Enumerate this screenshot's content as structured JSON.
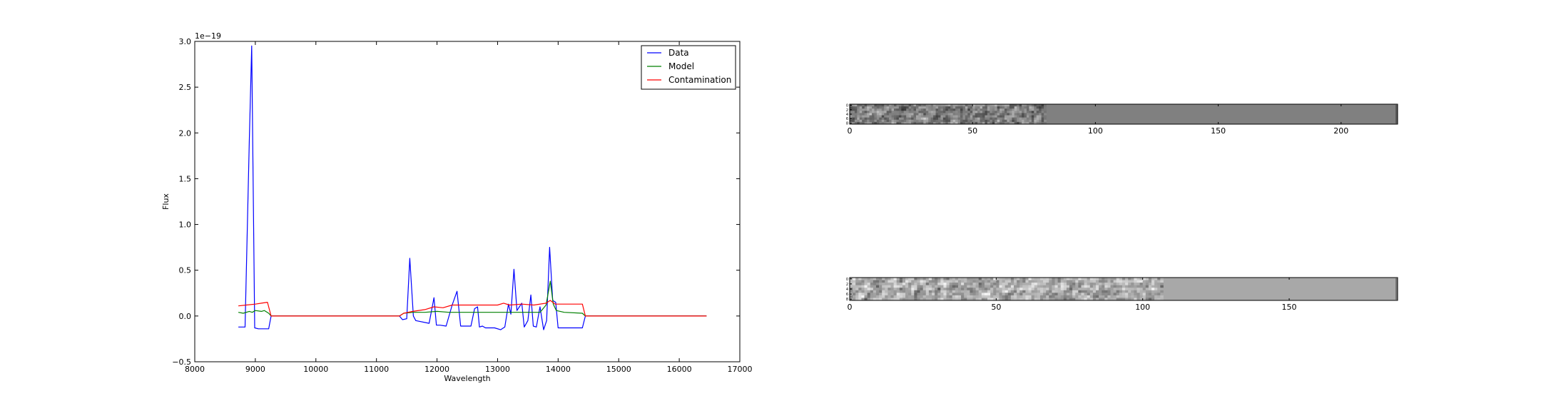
{
  "chart_data": [
    {
      "type": "line",
      "title": "",
      "xlabel": "Wavelength",
      "ylabel": "Flux",
      "offset_label": "1e−19",
      "xlim": [
        8000,
        17000
      ],
      "ylim": [
        -0.5,
        3.0
      ],
      "xticks": [
        8000,
        9000,
        10000,
        11000,
        12000,
        13000,
        14000,
        15000,
        16000,
        17000
      ],
      "yticks": [
        -0.5,
        0.0,
        0.5,
        1.0,
        1.5,
        2.0,
        2.5,
        3.0
      ],
      "legend_position": "top-right",
      "grid": false,
      "series": [
        {
          "name": "Data",
          "color": "#0000ff",
          "points": [
            [
              8720,
              -0.12
            ],
            [
              8830,
              -0.12
            ],
            [
              8900,
              1.9
            ],
            [
              8940,
              2.95
            ],
            [
              8990,
              -0.13
            ],
            [
              9050,
              -0.14
            ],
            [
              9220,
              -0.14
            ],
            [
              9260,
              0.0
            ],
            [
              11380,
              0.0
            ],
            [
              11430,
              -0.04
            ],
            [
              11500,
              -0.03
            ],
            [
              11550,
              0.63
            ],
            [
              11610,
              0.0
            ],
            [
              11650,
              -0.05
            ],
            [
              11870,
              -0.08
            ],
            [
              11950,
              0.2
            ],
            [
              11990,
              -0.1
            ],
            [
              12050,
              -0.1
            ],
            [
              12150,
              -0.11
            ],
            [
              12250,
              0.12
            ],
            [
              12330,
              0.27
            ],
            [
              12390,
              -0.11
            ],
            [
              12560,
              -0.11
            ],
            [
              12620,
              0.08
            ],
            [
              12670,
              0.1
            ],
            [
              12700,
              -0.12
            ],
            [
              12750,
              -0.11
            ],
            [
              12800,
              -0.13
            ],
            [
              12950,
              -0.13
            ],
            [
              13050,
              -0.15
            ],
            [
              13120,
              -0.12
            ],
            [
              13180,
              0.13
            ],
            [
              13220,
              0.02
            ],
            [
              13270,
              0.51
            ],
            [
              13320,
              0.06
            ],
            [
              13360,
              0.1
            ],
            [
              13400,
              0.14
            ],
            [
              13440,
              -0.12
            ],
            [
              13500,
              -0.05
            ],
            [
              13550,
              0.23
            ],
            [
              13590,
              -0.11
            ],
            [
              13640,
              -0.12
            ],
            [
              13700,
              0.1
            ],
            [
              13760,
              -0.15
            ],
            [
              13810,
              -0.05
            ],
            [
              13860,
              0.75
            ],
            [
              13910,
              0.17
            ],
            [
              13960,
              0.15
            ],
            [
              14000,
              -0.13
            ],
            [
              14400,
              -0.13
            ],
            [
              14450,
              0.0
            ],
            [
              16450,
              0.0
            ]
          ]
        },
        {
          "name": "Model",
          "color": "#008000",
          "points": [
            [
              8720,
              0.04
            ],
            [
              8800,
              0.03
            ],
            [
              8900,
              0.05
            ],
            [
              8950,
              0.04
            ],
            [
              9000,
              0.06
            ],
            [
              9100,
              0.05
            ],
            [
              9150,
              0.06
            ],
            [
              9220,
              0.03
            ],
            [
              9260,
              0.0
            ],
            [
              11380,
              0.0
            ],
            [
              11450,
              0.03
            ],
            [
              11600,
              0.04
            ],
            [
              11800,
              0.04
            ],
            [
              12000,
              0.05
            ],
            [
              12200,
              0.04
            ],
            [
              12500,
              0.04
            ],
            [
              12800,
              0.04
            ],
            [
              13100,
              0.04
            ],
            [
              13400,
              0.04
            ],
            [
              13700,
              0.04
            ],
            [
              13800,
              0.12
            ],
            [
              13870,
              0.38
            ],
            [
              13920,
              0.13
            ],
            [
              13970,
              0.06
            ],
            [
              14100,
              0.04
            ],
            [
              14400,
              0.03
            ],
            [
              14450,
              0.0
            ],
            [
              16450,
              0.0
            ]
          ]
        },
        {
          "name": "Contamination",
          "color": "#ff0000",
          "points": [
            [
              8720,
              0.11
            ],
            [
              8850,
              0.12
            ],
            [
              9000,
              0.13
            ],
            [
              9100,
              0.14
            ],
            [
              9200,
              0.15
            ],
            [
              9260,
              0.0
            ],
            [
              11380,
              0.0
            ],
            [
              11450,
              0.03
            ],
            [
              11600,
              0.05
            ],
            [
              11800,
              0.07
            ],
            [
              11950,
              0.1
            ],
            [
              12100,
              0.09
            ],
            [
              12250,
              0.12
            ],
            [
              12400,
              0.12
            ],
            [
              12600,
              0.12
            ],
            [
              12800,
              0.12
            ],
            [
              13000,
              0.12
            ],
            [
              13100,
              0.14
            ],
            [
              13200,
              0.12
            ],
            [
              13400,
              0.13
            ],
            [
              13600,
              0.12
            ],
            [
              13800,
              0.14
            ],
            [
              13870,
              0.17
            ],
            [
              13950,
              0.13
            ],
            [
              14100,
              0.13
            ],
            [
              14400,
              0.13
            ],
            [
              14450,
              0.0
            ],
            [
              16450,
              0.0
            ]
          ]
        }
      ]
    },
    {
      "type": "heatmap",
      "xlim": [
        0,
        223
      ],
      "xticks": [
        0,
        50,
        100,
        150,
        200
      ],
      "yticks": [
        0,
        2,
        4,
        6,
        8
      ],
      "data_extent_x": 80,
      "rows": 9,
      "fill_color": "#808080"
    },
    {
      "type": "heatmap",
      "xlim": [
        0,
        187
      ],
      "xticks": [
        0,
        50,
        100,
        150
      ],
      "yticks": [
        0,
        2,
        4,
        6,
        8
      ],
      "data_extent_x": 107,
      "rows": 9,
      "fill_color": "#a8a8a8"
    }
  ]
}
